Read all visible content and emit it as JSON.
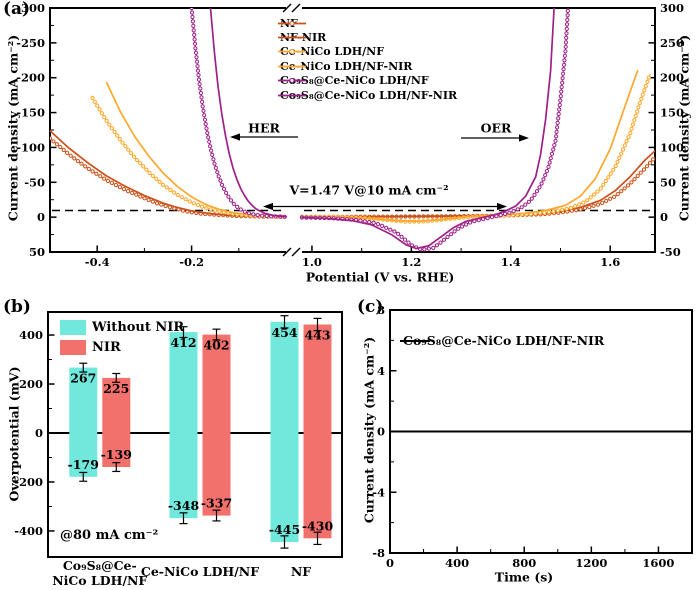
{
  "figure": {
    "background": "#ffffff"
  },
  "chart_data": [
    {
      "id": "a",
      "type": "line",
      "panel_label": "(a)",
      "xlabel": "Potential (V vs. RHE)",
      "ylabel_left": "Current density (mA cm⁻²)",
      "ylabel_right": "Current density (mA cm⁻²)",
      "her_label": "HER",
      "oer_label": "OER",
      "annotation": "V=1.47 V@10 mA cm⁻²",
      "dashed_line_current": 10,
      "xlim_left_segment": [
        -0.5,
        0.0
      ],
      "xlim_right_segment": [
        0.98,
        1.69
      ],
      "xticks_left": [
        "-0.4",
        "-0.2"
      ],
      "xticks_right": [
        "1.0",
        "1.2",
        "1.4",
        "1.6"
      ],
      "ylim_left": [
        -300,
        50
      ],
      "ylim_right": [
        300,
        -50
      ],
      "yticks_left": [
        "-300",
        "-250",
        "-200",
        "-150",
        "-100",
        "-50",
        "0",
        "50"
      ],
      "yticks_right": [
        "300",
        "250",
        "200",
        "150",
        "100",
        "50",
        "0",
        "-50"
      ],
      "series": [
        {
          "name": "NF",
          "color": "#CB5119",
          "marker": true,
          "her": [
            [
              -0.5,
              -113
            ],
            [
              -0.46,
              -90
            ],
            [
              -0.42,
              -70
            ],
            [
              -0.38,
              -53
            ],
            [
              -0.34,
              -39
            ],
            [
              -0.3,
              -27
            ],
            [
              -0.27,
              -19
            ],
            [
              -0.24,
              -13
            ],
            [
              -0.21,
              -8
            ],
            [
              -0.18,
              -5
            ],
            [
              -0.14,
              -3
            ],
            [
              -0.1,
              -1.5
            ],
            [
              -0.05,
              -0.8
            ],
            [
              0.0,
              -0.5
            ]
          ],
          "oer": [
            [
              0.98,
              0.3
            ],
            [
              1.1,
              0.6
            ],
            [
              1.2,
              0.9
            ],
            [
              1.3,
              1.4
            ],
            [
              1.4,
              2.5
            ],
            [
              1.46,
              4
            ],
            [
              1.5,
              6.5
            ],
            [
              1.54,
              11
            ],
            [
              1.58,
              19
            ],
            [
              1.61,
              30
            ],
            [
              1.64,
              48
            ],
            [
              1.67,
              70
            ],
            [
              1.69,
              86
            ]
          ]
        },
        {
          "name": "NF-NIR",
          "color": "#CB5119",
          "marker": false,
          "her": [
            [
              -0.5,
              -124
            ],
            [
              -0.46,
              -99
            ],
            [
              -0.42,
              -78
            ],
            [
              -0.38,
              -59
            ],
            [
              -0.34,
              -44
            ],
            [
              -0.3,
              -31
            ],
            [
              -0.26,
              -20
            ],
            [
              -0.23,
              -14
            ],
            [
              -0.2,
              -9
            ],
            [
              -0.16,
              -5
            ],
            [
              -0.12,
              -2.5
            ],
            [
              -0.07,
              -1.2
            ],
            [
              0.0,
              -0.5
            ]
          ],
          "oer": [
            [
              0.98,
              0.3
            ],
            [
              1.1,
              0.7
            ],
            [
              1.2,
              1.1
            ],
            [
              1.3,
              1.8
            ],
            [
              1.4,
              3
            ],
            [
              1.46,
              5
            ],
            [
              1.5,
              8
            ],
            [
              1.54,
              14
            ],
            [
              1.58,
              24
            ],
            [
              1.61,
              38
            ],
            [
              1.64,
              58
            ],
            [
              1.67,
              82
            ],
            [
              1.69,
              95
            ]
          ]
        },
        {
          "name": "Ce-NiCo LDH/NF",
          "color": "#FFA72B",
          "marker": true,
          "her": [
            [
              -0.41,
              -171
            ],
            [
              -0.38,
              -138
            ],
            [
              -0.35,
              -110
            ],
            [
              -0.32,
              -85
            ],
            [
              -0.29,
              -64
            ],
            [
              -0.26,
              -46
            ],
            [
              -0.23,
              -32
            ],
            [
              -0.2,
              -21
            ],
            [
              -0.17,
              -13
            ],
            [
              -0.14,
              -8
            ],
            [
              -0.11,
              -4.5
            ],
            [
              -0.07,
              -2
            ],
            [
              -0.03,
              -1
            ],
            [
              0.0,
              -0.6
            ]
          ],
          "oer": [
            [
              0.98,
              0.5
            ],
            [
              1.05,
              0.2
            ],
            [
              1.1,
              -1
            ],
            [
              1.15,
              -4
            ],
            [
              1.19,
              -6.5
            ],
            [
              1.23,
              -6
            ],
            [
              1.27,
              -3
            ],
            [
              1.32,
              0.5
            ],
            [
              1.38,
              2
            ],
            [
              1.44,
              4.5
            ],
            [
              1.48,
              7.5
            ],
            [
              1.52,
              13
            ],
            [
              1.55,
              22
            ],
            [
              1.58,
              40
            ],
            [
              1.61,
              72
            ],
            [
              1.64,
              120
            ],
            [
              1.66,
              165
            ],
            [
              1.68,
              205
            ]
          ]
        },
        {
          "name": "Ce-NiCo LDH/NF-NIR",
          "color": "#FFA72B",
          "marker": false,
          "her": [
            [
              -0.38,
              -193
            ],
            [
              -0.35,
              -150
            ],
            [
              -0.32,
              -115
            ],
            [
              -0.29,
              -87
            ],
            [
              -0.26,
              -63
            ],
            [
              -0.23,
              -44
            ],
            [
              -0.2,
              -29
            ],
            [
              -0.17,
              -18
            ],
            [
              -0.14,
              -11
            ],
            [
              -0.11,
              -6
            ],
            [
              -0.07,
              -2.8
            ],
            [
              -0.03,
              -1.2
            ],
            [
              0.0,
              -0.6
            ]
          ],
          "oer": [
            [
              0.98,
              0.5
            ],
            [
              1.05,
              0.1
            ],
            [
              1.12,
              -2
            ],
            [
              1.17,
              -5
            ],
            [
              1.21,
              -6
            ],
            [
              1.26,
              -3.5
            ],
            [
              1.31,
              0.5
            ],
            [
              1.37,
              2.5
            ],
            [
              1.43,
              5.5
            ],
            [
              1.47,
              9.5
            ],
            [
              1.51,
              17
            ],
            [
              1.54,
              30
            ],
            [
              1.57,
              55
            ],
            [
              1.6,
              98
            ],
            [
              1.63,
              160
            ],
            [
              1.655,
              210
            ]
          ]
        },
        {
          "name": "Co₉S₈@Ce-NiCo LDH/NF",
          "color": "#9E2088",
          "marker": true,
          "her": [
            [
              -0.2,
              -300
            ],
            [
              -0.192,
              -243
            ],
            [
              -0.184,
              -196
            ],
            [
              -0.176,
              -157
            ],
            [
              -0.168,
              -125
            ],
            [
              -0.16,
              -99
            ],
            [
              -0.152,
              -78
            ],
            [
              -0.144,
              -61
            ],
            [
              -0.136,
              -47
            ],
            [
              -0.128,
              -36
            ],
            [
              -0.12,
              -27
            ],
            [
              -0.112,
              -20
            ],
            [
              -0.104,
              -15
            ],
            [
              -0.096,
              -11
            ],
            [
              -0.085,
              -7
            ],
            [
              -0.07,
              -4
            ],
            [
              -0.05,
              -2
            ],
            [
              -0.025,
              -1
            ],
            [
              0.0,
              -0.5
            ]
          ],
          "oer": [
            [
              0.98,
              -0.5
            ],
            [
              1.04,
              -1.5
            ],
            [
              1.09,
              -4
            ],
            [
              1.13,
              -9
            ],
            [
              1.17,
              -22
            ],
            [
              1.2,
              -40
            ],
            [
              1.22,
              -47
            ],
            [
              1.245,
              -44
            ],
            [
              1.27,
              -30
            ],
            [
              1.295,
              -16
            ],
            [
              1.32,
              -7
            ],
            [
              1.35,
              -2
            ],
            [
              1.38,
              3
            ],
            [
              1.4,
              7
            ],
            [
              1.42,
              13
            ],
            [
              1.44,
              24
            ],
            [
              1.46,
              45
            ],
            [
              1.475,
              70
            ],
            [
              1.49,
              110
            ],
            [
              1.5,
              170
            ],
            [
              1.51,
              240
            ],
            [
              1.515,
              300
            ]
          ]
        },
        {
          "name": "Co₉S₈@Ce-NiCo LDH/NF-NIR",
          "color": "#9E2088",
          "marker": false,
          "her": [
            [
              -0.16,
              -300
            ],
            [
              -0.152,
              -238
            ],
            [
              -0.144,
              -188
            ],
            [
              -0.136,
              -148
            ],
            [
              -0.128,
              -116
            ],
            [
              -0.12,
              -90
            ],
            [
              -0.112,
              -70
            ],
            [
              -0.104,
              -54
            ],
            [
              -0.096,
              -41
            ],
            [
              -0.088,
              -31
            ],
            [
              -0.08,
              -23
            ],
            [
              -0.072,
              -17
            ],
            [
              -0.064,
              -12
            ],
            [
              -0.056,
              -9
            ],
            [
              -0.045,
              -5.5
            ],
            [
              -0.03,
              -3
            ],
            [
              -0.015,
              -1.5
            ],
            [
              0.0,
              -0.7
            ]
          ],
          "oer": [
            [
              0.98,
              -0.5
            ],
            [
              1.03,
              -2
            ],
            [
              1.08,
              -5
            ],
            [
              1.12,
              -11
            ],
            [
              1.16,
              -25
            ],
            [
              1.19,
              -40
            ],
            [
              1.21,
              -45
            ],
            [
              1.235,
              -41
            ],
            [
              1.26,
              -28
            ],
            [
              1.285,
              -15
            ],
            [
              1.31,
              -6
            ],
            [
              1.34,
              -1
            ],
            [
              1.37,
              4
            ],
            [
              1.39,
              9
            ],
            [
              1.41,
              16
            ],
            [
              1.43,
              30
            ],
            [
              1.45,
              58
            ],
            [
              1.46,
              90
            ],
            [
              1.47,
              140
            ],
            [
              1.48,
              210
            ],
            [
              1.487,
              300
            ]
          ]
        }
      ]
    },
    {
      "id": "b",
      "type": "bar",
      "panel_label": "(b)",
      "ylabel": "Overpotential (mV)",
      "annotation": "@80 mA cm⁻²",
      "ylim": [
        -506,
        494
      ],
      "yticks": [
        "400",
        "200",
        "0",
        "-200",
        "-400"
      ],
      "categories": [
        "Co₉S₈@Ce-NiCo LDH/NF",
        "Ce-NiCo LDH/NF",
        "NF"
      ],
      "category_lines": [
        [
          "Co₉S₈@Ce-",
          "NiCo LDH/NF"
        ],
        [
          "Ce-NiCo LDH/NF"
        ],
        [
          "NF"
        ]
      ],
      "series": [
        {
          "name": "Without NIR",
          "color": "#70E9DC",
          "oer_values": [
            267,
            412,
            454
          ],
          "her_values": [
            -179,
            -348,
            -445
          ]
        },
        {
          "name": "NIR",
          "color": "#F3716C",
          "oer_values": [
            225,
            402,
            443
          ],
          "her_values": [
            -139,
            -337,
            -430
          ]
        }
      ],
      "error_bars": [
        18,
        22,
        25
      ]
    },
    {
      "id": "c",
      "type": "line",
      "panel_label": "(c)",
      "xlabel": "Time (s)",
      "ylabel": "Current density (mA cm⁻²)",
      "xlim": [
        0,
        1800
      ],
      "xticks": [
        "0",
        "400",
        "800",
        "1200",
        "1600"
      ],
      "ylim": [
        -8,
        8
      ],
      "yticks": [
        "8",
        "4",
        "0",
        "-4",
        "-8"
      ],
      "series": [
        {
          "name": "Co₉S₈@Ce-NiCo LDH/NF-NIR",
          "color": "#000000",
          "points": [
            [
              0,
              0
            ],
            [
              1800,
              0
            ]
          ]
        }
      ]
    }
  ]
}
